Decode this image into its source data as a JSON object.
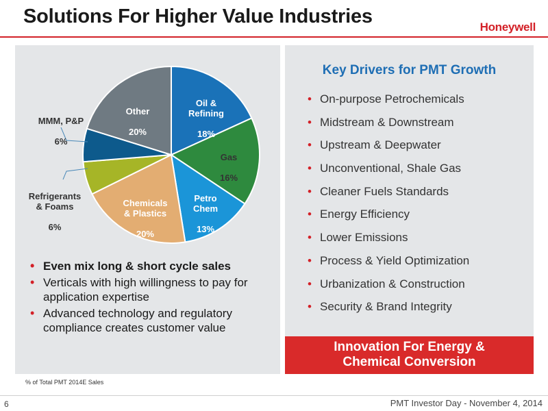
{
  "header": {
    "title": "Solutions For Higher Value Industries",
    "logo_text": "Honeywell"
  },
  "chart_data": {
    "type": "pie",
    "slices": [
      {
        "label": "Oil &\nRefining",
        "pct_label": "18%",
        "value": 18,
        "color": "#1a72b8"
      },
      {
        "label": "Gas",
        "pct_label": "16%",
        "value": 16,
        "color": "#2e8a3e"
      },
      {
        "label": "Petro\nChem",
        "pct_label": "13%",
        "value": 13,
        "color": "#1b95d8"
      },
      {
        "label": "Chemicals\n& Plastics",
        "pct_label": "20%",
        "value": 20,
        "color": "#e3ad72"
      },
      {
        "label": "Refrigerants\n& Foams",
        "pct_label": "6%",
        "value": 6,
        "color": "#a6b527"
      },
      {
        "label": "MMM, P&P",
        "pct_label": "6%",
        "value": 6,
        "color": "#0d5a8c"
      },
      {
        "label": "Other",
        "pct_label": "20%",
        "value": 20,
        "color": "#6f7a82"
      }
    ]
  },
  "left_bullets": [
    "Even mix long & short cycle sales",
    "Verticals with high willingness to pay for application expertise",
    "Advanced technology and regulatory compliance creates customer value"
  ],
  "footnote": "% of Total PMT 2014E Sales",
  "drivers": {
    "title": "Key Drivers for PMT Growth",
    "items": [
      "On-purpose Petrochemicals",
      "Midstream & Downstream",
      "Upstream & Deepwater",
      "Unconventional, Shale Gas",
      "Cleaner Fuels Standards",
      "Energy Efficiency",
      "Lower Emissions",
      "Process & Yield Optimization",
      "Urbanization & Construction",
      "Security & Brand Integrity"
    ]
  },
  "innovation": {
    "line1": "Innovation For Energy &",
    "line2": "Chemical Conversion"
  },
  "footer": {
    "page_number": "6",
    "text": "PMT Investor Day - November 4, 2014"
  }
}
